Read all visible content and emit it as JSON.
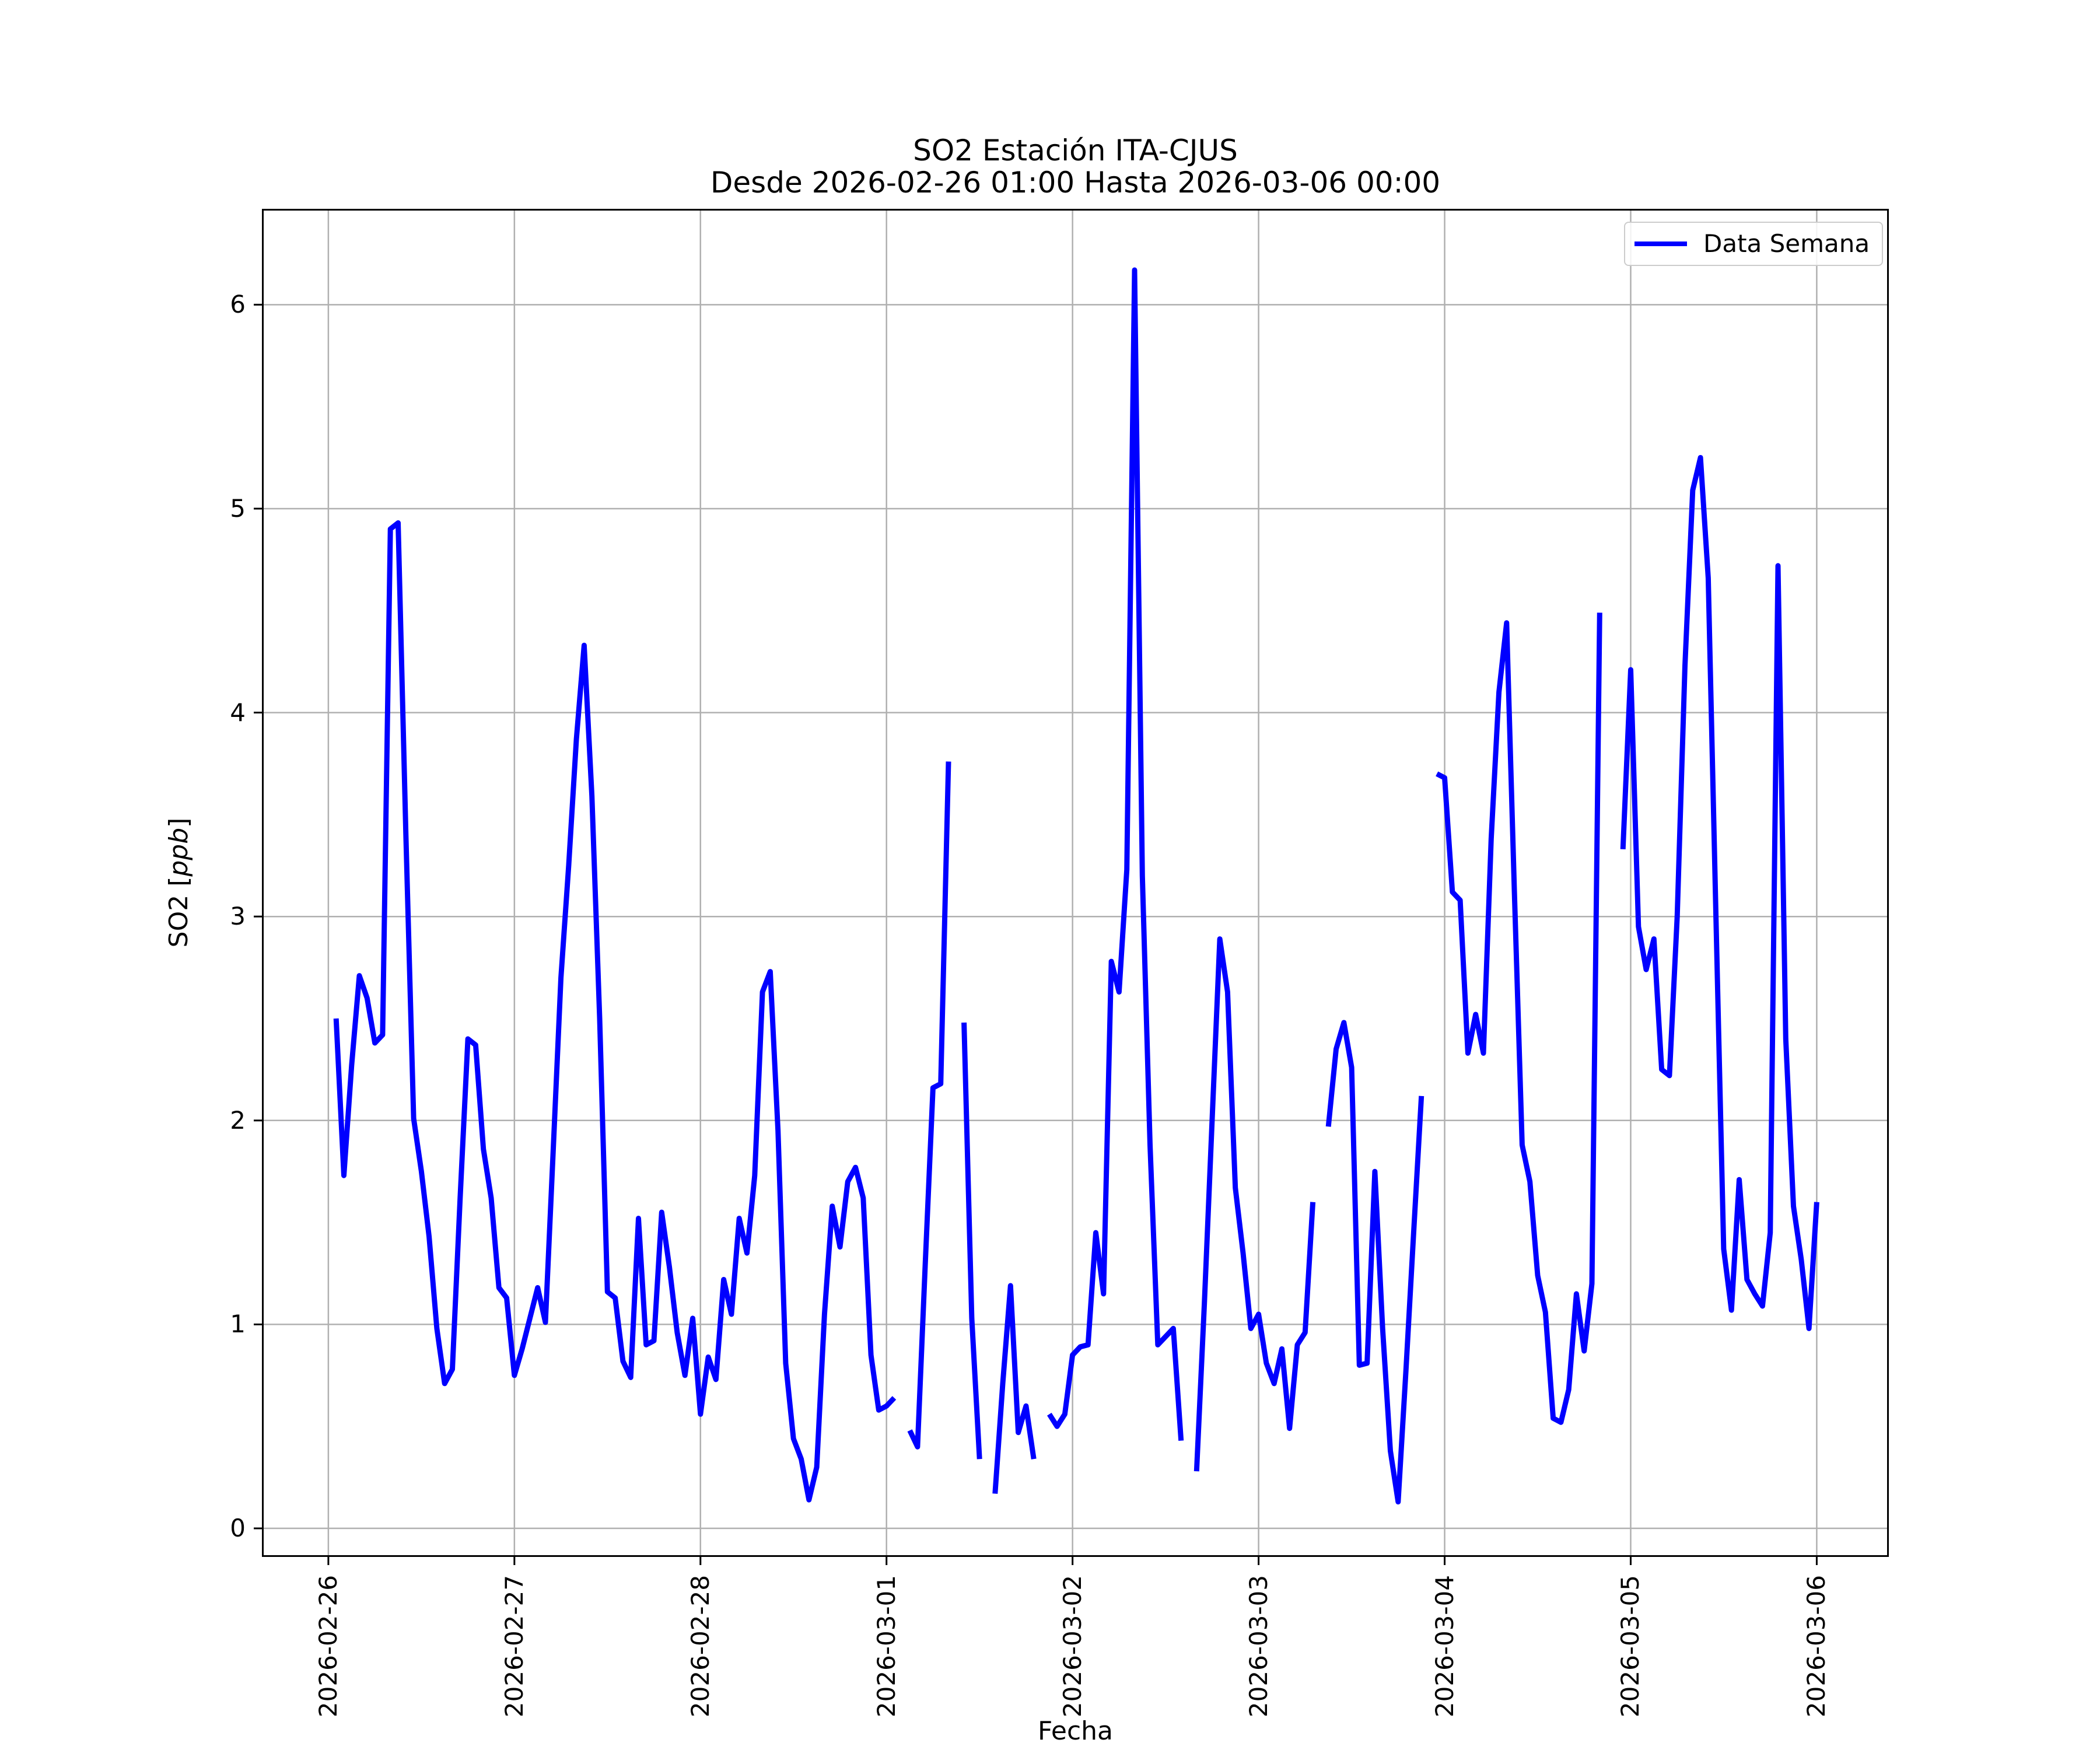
{
  "title": {
    "line1": "SO2 Estación ITA-CJUS",
    "line2": "Desde 2026-02-26 01:00 Hasta 2026-03-06 00:00"
  },
  "axes": {
    "xlabel": "Fecha",
    "ylabel_prefix": "SO2 [",
    "ylabel_italic": "ppb",
    "ylabel_suffix": "]"
  },
  "legend": {
    "label": "Data Semana"
  },
  "colors": {
    "line": "#0000ff",
    "grid": "#b0b0b0",
    "spine": "#000000",
    "tick": "#000000",
    "legend_border": "#cccccc",
    "background": "#ffffff"
  },
  "chart_data": {
    "type": "line",
    "title": "SO2 Estación ITA-CJUS — Desde 2026-02-26 01:00 Hasta 2026-03-06 00:00",
    "xlabel": "Fecha",
    "ylabel": "SO2 [ppb]",
    "legend_position": "upper right",
    "grid": true,
    "x_start": "2026-02-26 01:00",
    "x_interval_hours": 1,
    "x_tick_hours": [
      0,
      24,
      48,
      72,
      96,
      120,
      144,
      168,
      192
    ],
    "x_tick_labels": [
      "2026-02-26",
      "2026-02-27",
      "2026-02-28",
      "2026-03-01",
      "2026-03-02",
      "2026-03-03",
      "2026-03-04",
      "2026-03-05",
      "2026-03-06"
    ],
    "y_ticks": [
      0,
      1,
      2,
      3,
      4,
      5,
      6
    ],
    "xlim_hours": [
      -8.57,
      201.3
    ],
    "ylim": [
      -0.14,
      6.47
    ],
    "series": [
      {
        "name": "Data Semana",
        "color": "#0000ff",
        "values": [
          2.5,
          1.73,
          2.27,
          2.71,
          2.6,
          2.38,
          2.42,
          4.9,
          4.93,
          3.4,
          2.01,
          1.75,
          1.43,
          0.98,
          0.71,
          0.78,
          1.62,
          2.4,
          2.37,
          1.86,
          1.62,
          1.18,
          1.13,
          0.75,
          0.88,
          1.03,
          1.18,
          1.01,
          1.85,
          2.7,
          3.25,
          3.87,
          4.33,
          3.59,
          2.5,
          1.16,
          1.13,
          0.82,
          0.74,
          1.52,
          0.9,
          0.92,
          1.55,
          1.28,
          0.96,
          0.75,
          1.03,
          0.56,
          0.84,
          0.73,
          1.22,
          1.05,
          1.52,
          1.35,
          1.73,
          2.63,
          2.73,
          1.95,
          0.81,
          0.44,
          0.34,
          0.14,
          0.3,
          1.05,
          1.58,
          1.38,
          1.7,
          1.77,
          1.62,
          0.85,
          0.58,
          0.6,
          0.64,
          null,
          0.48,
          0.4,
          1.3,
          2.16,
          2.18,
          3.76,
          null,
          2.48,
          1.03,
          0.34,
          null,
          0.17,
          0.71,
          1.19,
          0.47,
          0.6,
          0.34,
          null,
          0.56,
          0.5,
          0.56,
          0.85,
          0.89,
          0.9,
          1.45,
          1.15,
          2.78,
          2.63,
          3.23,
          6.17,
          3.2,
          1.88,
          0.9,
          0.94,
          0.98,
          0.43,
          null,
          0.28,
          1.1,
          2.0,
          2.89,
          2.63,
          1.67,
          1.35,
          0.98,
          1.05,
          0.81,
          0.71,
          0.88,
          0.49,
          0.9,
          0.96,
          1.6,
          null,
          1.97,
          2.35,
          2.48,
          2.26,
          0.8,
          0.81,
          1.75,
          0.98,
          0.38,
          0.13,
          0.77,
          1.45,
          2.12,
          null,
          3.7,
          3.68,
          3.12,
          3.08,
          2.33,
          2.52,
          2.33,
          3.38,
          4.1,
          4.44,
          3.12,
          1.88,
          1.7,
          1.24,
          1.06,
          0.54,
          0.52,
          0.68,
          1.15,
          0.87,
          1.2,
          4.49,
          null,
          null,
          3.33,
          4.21,
          2.95,
          2.74,
          2.89,
          2.25,
          2.22,
          3.0,
          4.23,
          5.09,
          5.25,
          4.66,
          2.99,
          1.37,
          1.07,
          1.71,
          1.22,
          1.15,
          1.09,
          1.45,
          4.72,
          2.4,
          1.58,
          1.32,
          0.98,
          1.6
        ]
      }
    ]
  }
}
